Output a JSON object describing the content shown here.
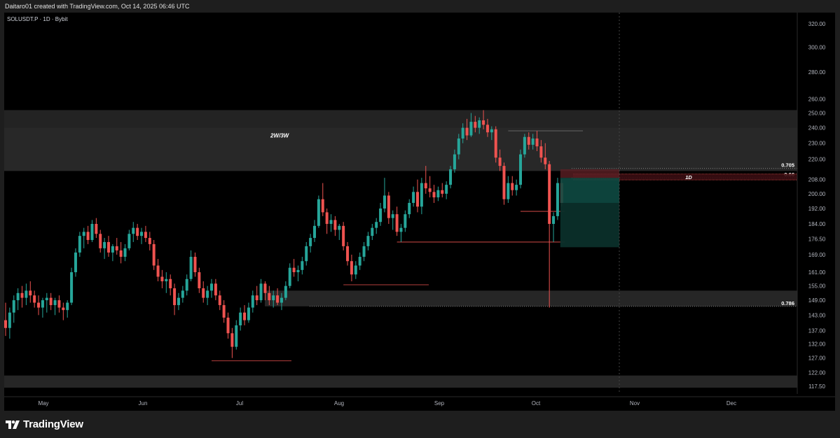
{
  "header": {
    "attribution": "Daitaro01 created with TradingView.com, Oct 14, 2025 06:46 UTC"
  },
  "chart": {
    "symbol_line": "SOLUSDT.P · 1D · Bybit"
  },
  "footer": {
    "brand": "TradingView",
    "logo_icon": "tradingview-logo-icon"
  },
  "colors": {
    "background": "#000000",
    "frame": "#1e1e1e",
    "up": "#26a69a",
    "down": "#ef5350",
    "zone": "#2a2a2a",
    "long_target": "#0e4a42",
    "long_stop": "#5c1f24"
  },
  "chart_data": {
    "type": "candlestick",
    "timeframe": "1D",
    "y_axis_ticks": [
      320.0,
      300.0,
      280.0,
      260.0,
      250.0,
      240.0,
      230.0,
      220.0,
      208.0,
      200.0,
      192.0,
      184.0,
      176.5,
      169.0,
      161.0,
      155.0,
      149.0,
      143.0,
      137.0,
      132.0,
      127.0,
      122.0,
      117.5
    ],
    "y_scale": "log",
    "ylim": [
      115,
      330
    ],
    "x_axis_labels": [
      "May",
      "Jun",
      "Jul",
      "Aug",
      "Sep",
      "Oct",
      "Nov",
      "Dec"
    ],
    "zones": [
      {
        "label": "2W/3W",
        "low": 213,
        "high": 252
      },
      {
        "label": "",
        "low": 146.5,
        "high": 153
      },
      {
        "label": "",
        "low": 117,
        "high": 121
      }
    ],
    "levels": [
      {
        "label": "0.705",
        "value": 214.5
      },
      {
        "label": "0.66",
        "value": 209
      },
      {
        "label": "0.786",
        "value": 146.5
      }
    ],
    "band_label": "1D",
    "position": {
      "type": "long",
      "entry": 195,
      "target": 209,
      "stop": 172.5
    },
    "candles": [
      {
        "o": 141,
        "h": 148,
        "l": 135,
        "c": 138
      },
      {
        "o": 138,
        "h": 146,
        "l": 134,
        "c": 144
      },
      {
        "o": 144,
        "h": 151,
        "l": 140,
        "c": 149
      },
      {
        "o": 149,
        "h": 154,
        "l": 145,
        "c": 152
      },
      {
        "o": 152,
        "h": 155,
        "l": 146,
        "c": 150
      },
      {
        "o": 150,
        "h": 156,
        "l": 147,
        "c": 153
      },
      {
        "o": 153,
        "h": 157,
        "l": 148,
        "c": 151
      },
      {
        "o": 151,
        "h": 153,
        "l": 146,
        "c": 148
      },
      {
        "o": 148,
        "h": 151,
        "l": 143,
        "c": 146
      },
      {
        "o": 146,
        "h": 150,
        "l": 142,
        "c": 149
      },
      {
        "o": 149,
        "h": 152,
        "l": 144,
        "c": 150
      },
      {
        "o": 150,
        "h": 152,
        "l": 145,
        "c": 147
      },
      {
        "o": 147,
        "h": 150,
        "l": 143,
        "c": 149
      },
      {
        "o": 149,
        "h": 151,
        "l": 144,
        "c": 146
      },
      {
        "o": 146,
        "h": 148,
        "l": 141,
        "c": 145
      },
      {
        "o": 145,
        "h": 149,
        "l": 142,
        "c": 148
      },
      {
        "o": 148,
        "h": 163,
        "l": 147,
        "c": 161
      },
      {
        "o": 161,
        "h": 172,
        "l": 159,
        "c": 170
      },
      {
        "o": 170,
        "h": 180,
        "l": 168,
        "c": 178
      },
      {
        "o": 178,
        "h": 182,
        "l": 172,
        "c": 180
      },
      {
        "o": 180,
        "h": 183,
        "l": 174,
        "c": 176
      },
      {
        "o": 176,
        "h": 186,
        "l": 175,
        "c": 184
      },
      {
        "o": 184,
        "h": 187,
        "l": 177,
        "c": 179
      },
      {
        "o": 179,
        "h": 181,
        "l": 170,
        "c": 172
      },
      {
        "o": 172,
        "h": 177,
        "l": 167,
        "c": 175
      },
      {
        "o": 175,
        "h": 178,
        "l": 168,
        "c": 170
      },
      {
        "o": 170,
        "h": 174,
        "l": 166,
        "c": 173
      },
      {
        "o": 173,
        "h": 177,
        "l": 169,
        "c": 171
      },
      {
        "o": 171,
        "h": 175,
        "l": 165,
        "c": 168
      },
      {
        "o": 168,
        "h": 174,
        "l": 166,
        "c": 172
      },
      {
        "o": 172,
        "h": 181,
        "l": 171,
        "c": 179
      },
      {
        "o": 179,
        "h": 185,
        "l": 175,
        "c": 182
      },
      {
        "o": 182,
        "h": 184,
        "l": 176,
        "c": 178
      },
      {
        "o": 178,
        "h": 182,
        "l": 174,
        "c": 180
      },
      {
        "o": 180,
        "h": 183,
        "l": 175,
        "c": 177
      },
      {
        "o": 177,
        "h": 180,
        "l": 171,
        "c": 174
      },
      {
        "o": 174,
        "h": 176,
        "l": 162,
        "c": 164
      },
      {
        "o": 164,
        "h": 167,
        "l": 157,
        "c": 159
      },
      {
        "o": 159,
        "h": 162,
        "l": 154,
        "c": 157
      },
      {
        "o": 157,
        "h": 161,
        "l": 152,
        "c": 158
      },
      {
        "o": 158,
        "h": 160,
        "l": 151,
        "c": 154
      },
      {
        "o": 154,
        "h": 156,
        "l": 143,
        "c": 147
      },
      {
        "o": 147,
        "h": 152,
        "l": 145,
        "c": 150
      },
      {
        "o": 150,
        "h": 155,
        "l": 148,
        "c": 153
      },
      {
        "o": 153,
        "h": 160,
        "l": 151,
        "c": 158
      },
      {
        "o": 158,
        "h": 171,
        "l": 157,
        "c": 168
      },
      {
        "o": 168,
        "h": 170,
        "l": 159,
        "c": 161
      },
      {
        "o": 161,
        "h": 163,
        "l": 152,
        "c": 154
      },
      {
        "o": 154,
        "h": 157,
        "l": 148,
        "c": 150
      },
      {
        "o": 150,
        "h": 155,
        "l": 147,
        "c": 153
      },
      {
        "o": 153,
        "h": 158,
        "l": 150,
        "c": 156
      },
      {
        "o": 156,
        "h": 158,
        "l": 149,
        "c": 151
      },
      {
        "o": 151,
        "h": 153,
        "l": 145,
        "c": 147
      },
      {
        "o": 147,
        "h": 149,
        "l": 140,
        "c": 142
      },
      {
        "o": 142,
        "h": 144,
        "l": 134,
        "c": 136
      },
      {
        "o": 136,
        "h": 138,
        "l": 127,
        "c": 131
      },
      {
        "o": 131,
        "h": 141,
        "l": 130,
        "c": 139
      },
      {
        "o": 139,
        "h": 146,
        "l": 137,
        "c": 144
      },
      {
        "o": 144,
        "h": 147,
        "l": 139,
        "c": 141
      },
      {
        "o": 141,
        "h": 148,
        "l": 140,
        "c": 146
      },
      {
        "o": 146,
        "h": 153,
        "l": 144,
        "c": 151
      },
      {
        "o": 151,
        "h": 155,
        "l": 147,
        "c": 149
      },
      {
        "o": 149,
        "h": 158,
        "l": 148,
        "c": 156
      },
      {
        "o": 156,
        "h": 157,
        "l": 149,
        "c": 152
      },
      {
        "o": 152,
        "h": 155,
        "l": 147,
        "c": 149
      },
      {
        "o": 149,
        "h": 153,
        "l": 146,
        "c": 151
      },
      {
        "o": 151,
        "h": 154,
        "l": 147,
        "c": 148
      },
      {
        "o": 148,
        "h": 152,
        "l": 145,
        "c": 150
      },
      {
        "o": 150,
        "h": 157,
        "l": 149,
        "c": 155
      },
      {
        "o": 155,
        "h": 165,
        "l": 154,
        "c": 163
      },
      {
        "o": 163,
        "h": 167,
        "l": 159,
        "c": 161
      },
      {
        "o": 161,
        "h": 164,
        "l": 157,
        "c": 162
      },
      {
        "o": 162,
        "h": 168,
        "l": 160,
        "c": 166
      },
      {
        "o": 166,
        "h": 175,
        "l": 164,
        "c": 173
      },
      {
        "o": 173,
        "h": 179,
        "l": 170,
        "c": 177
      },
      {
        "o": 177,
        "h": 186,
        "l": 175,
        "c": 183
      },
      {
        "o": 183,
        "h": 199,
        "l": 182,
        "c": 197
      },
      {
        "o": 197,
        "h": 206,
        "l": 188,
        "c": 190
      },
      {
        "o": 190,
        "h": 192,
        "l": 179,
        "c": 184
      },
      {
        "o": 184,
        "h": 189,
        "l": 180,
        "c": 186
      },
      {
        "o": 186,
        "h": 188,
        "l": 178,
        "c": 181
      },
      {
        "o": 181,
        "h": 184,
        "l": 176,
        "c": 183
      },
      {
        "o": 183,
        "h": 185,
        "l": 171,
        "c": 173
      },
      {
        "o": 173,
        "h": 175,
        "l": 164,
        "c": 166
      },
      {
        "o": 166,
        "h": 169,
        "l": 157,
        "c": 160
      },
      {
        "o": 160,
        "h": 166,
        "l": 158,
        "c": 164
      },
      {
        "o": 164,
        "h": 170,
        "l": 162,
        "c": 168
      },
      {
        "o": 168,
        "h": 175,
        "l": 166,
        "c": 173
      },
      {
        "o": 173,
        "h": 180,
        "l": 171,
        "c": 178
      },
      {
        "o": 178,
        "h": 184,
        "l": 176,
        "c": 182
      },
      {
        "o": 182,
        "h": 187,
        "l": 179,
        "c": 185
      },
      {
        "o": 185,
        "h": 195,
        "l": 183,
        "c": 192
      },
      {
        "o": 192,
        "h": 209,
        "l": 190,
        "c": 199
      },
      {
        "o": 199,
        "h": 201,
        "l": 184,
        "c": 187
      },
      {
        "o": 187,
        "h": 191,
        "l": 181,
        "c": 189
      },
      {
        "o": 189,
        "h": 193,
        "l": 178,
        "c": 180
      },
      {
        "o": 180,
        "h": 184,
        "l": 175,
        "c": 182
      },
      {
        "o": 182,
        "h": 191,
        "l": 180,
        "c": 189
      },
      {
        "o": 189,
        "h": 197,
        "l": 187,
        "c": 195
      },
      {
        "o": 195,
        "h": 204,
        "l": 193,
        "c": 201
      },
      {
        "o": 201,
        "h": 208,
        "l": 190,
        "c": 193
      },
      {
        "o": 193,
        "h": 209,
        "l": 189,
        "c": 206
      },
      {
        "o": 206,
        "h": 216,
        "l": 200,
        "c": 203
      },
      {
        "o": 203,
        "h": 210,
        "l": 198,
        "c": 201
      },
      {
        "o": 201,
        "h": 205,
        "l": 195,
        "c": 198
      },
      {
        "o": 198,
        "h": 204,
        "l": 196,
        "c": 202
      },
      {
        "o": 202,
        "h": 206,
        "l": 198,
        "c": 200
      },
      {
        "o": 200,
        "h": 207,
        "l": 197,
        "c": 205
      },
      {
        "o": 205,
        "h": 216,
        "l": 203,
        "c": 214
      },
      {
        "o": 214,
        "h": 226,
        "l": 212,
        "c": 223
      },
      {
        "o": 223,
        "h": 236,
        "l": 220,
        "c": 233
      },
      {
        "o": 233,
        "h": 243,
        "l": 230,
        "c": 240
      },
      {
        "o": 240,
        "h": 246,
        "l": 232,
        "c": 235
      },
      {
        "o": 235,
        "h": 250,
        "l": 234,
        "c": 244
      },
      {
        "o": 244,
        "h": 248,
        "l": 237,
        "c": 240
      },
      {
        "o": 240,
        "h": 247,
        "l": 236,
        "c": 245
      },
      {
        "o": 245,
        "h": 252,
        "l": 239,
        "c": 242
      },
      {
        "o": 242,
        "h": 246,
        "l": 234,
        "c": 237
      },
      {
        "o": 237,
        "h": 241,
        "l": 232,
        "c": 239
      },
      {
        "o": 239,
        "h": 241,
        "l": 218,
        "c": 221
      },
      {
        "o": 221,
        "h": 226,
        "l": 213,
        "c": 216
      },
      {
        "o": 216,
        "h": 218,
        "l": 194,
        "c": 197
      },
      {
        "o": 197,
        "h": 210,
        "l": 195,
        "c": 206
      },
      {
        "o": 206,
        "h": 210,
        "l": 199,
        "c": 202
      },
      {
        "o": 202,
        "h": 208,
        "l": 199,
        "c": 205
      },
      {
        "o": 205,
        "h": 226,
        "l": 203,
        "c": 223
      },
      {
        "o": 223,
        "h": 236,
        "l": 221,
        "c": 234
      },
      {
        "o": 234,
        "h": 237,
        "l": 226,
        "c": 229
      },
      {
        "o": 229,
        "h": 236,
        "l": 226,
        "c": 233
      },
      {
        "o": 233,
        "h": 238,
        "l": 225,
        "c": 228
      },
      {
        "o": 228,
        "h": 232,
        "l": 218,
        "c": 221
      },
      {
        "o": 221,
        "h": 230,
        "l": 214,
        "c": 217
      },
      {
        "o": 217,
        "h": 219,
        "l": 146,
        "c": 184
      },
      {
        "o": 184,
        "h": 190,
        "l": 175,
        "c": 188
      },
      {
        "o": 188,
        "h": 209,
        "l": 186,
        "c": 206
      },
      {
        "o": 206,
        "h": 208,
        "l": 193,
        "c": 195
      }
    ]
  }
}
